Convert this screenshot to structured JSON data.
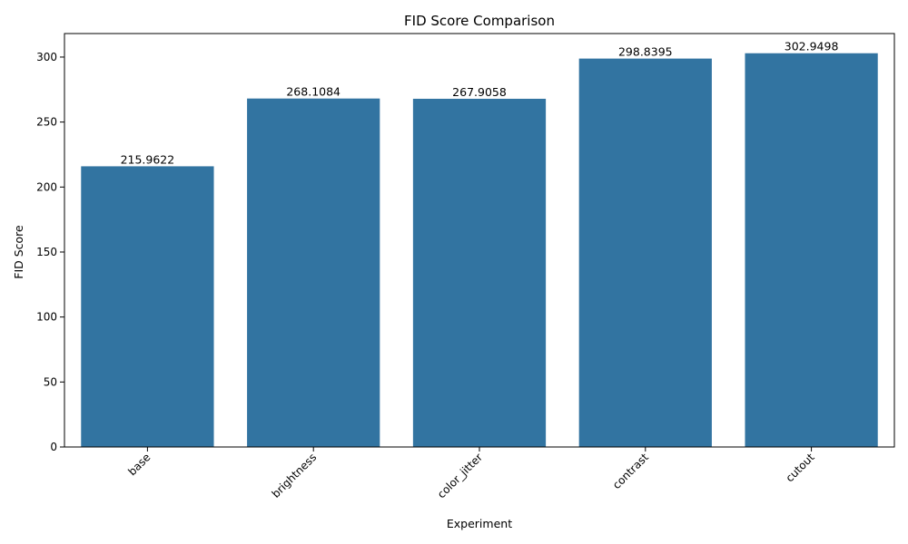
{
  "chart_data": {
    "type": "bar",
    "title": "FID Score Comparison",
    "xlabel": "Experiment",
    "ylabel": "FID Score",
    "categories": [
      "base",
      "brightness",
      "color_jitter",
      "contrast",
      "cutout"
    ],
    "values": [
      215.9622,
      268.1084,
      267.9058,
      298.8395,
      302.9498
    ],
    "value_labels": [
      "215.9622",
      "268.1084",
      "267.9058",
      "298.8395",
      "302.9498"
    ],
    "ylim": [
      0,
      318.1
    ],
    "yticks": [
      0,
      50,
      100,
      150,
      200,
      250,
      300
    ],
    "bar_color": "#3274a1",
    "grid": false,
    "legend": "none",
    "xtick_rotation": "45deg, right-aligned"
  }
}
